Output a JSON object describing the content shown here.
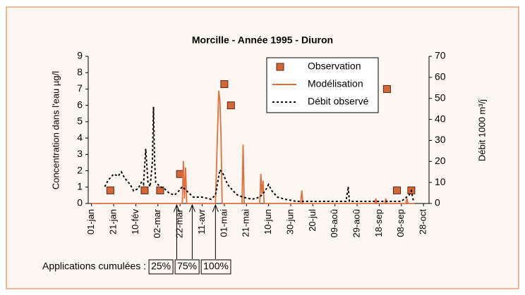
{
  "chart_data": {
    "type": "line",
    "title": "Morcille - Année 1995 - Diuron",
    "ylabel": "Concentration dans l'eau µg/l",
    "y2label": "Débit 1000 m³/j",
    "xlim": [
      -3,
      305
    ],
    "xticks": [
      {
        "value": 0,
        "label": "01-jan"
      },
      {
        "value": 20,
        "label": "21-jan"
      },
      {
        "value": 40,
        "label": "10-fév"
      },
      {
        "value": 60,
        "label": "02-mar"
      },
      {
        "value": 80,
        "label": "22-mar"
      },
      {
        "value": 100,
        "label": "11-avr"
      },
      {
        "value": 120,
        "label": "01-mai"
      },
      {
        "value": 140,
        "label": "21-mai"
      },
      {
        "value": 160,
        "label": "10-jun"
      },
      {
        "value": 180,
        "label": "30-jun"
      },
      {
        "value": 200,
        "label": "20-jul"
      },
      {
        "value": 220,
        "label": "09-aoû"
      },
      {
        "value": 240,
        "label": "29-aoû"
      },
      {
        "value": 260,
        "label": "18-sep"
      },
      {
        "value": 280,
        "label": "08-sep"
      },
      {
        "value": 300,
        "label": "28-oct"
      }
    ],
    "ylim": [
      0,
      9
    ],
    "yticks": [
      0,
      1,
      2,
      3,
      4,
      5,
      6,
      7,
      8,
      9
    ],
    "y2lim": [
      0,
      70
    ],
    "y2ticks": [
      0,
      10,
      20,
      30,
      40,
      50,
      60,
      70
    ],
    "legend": "top-right",
    "series": [
      {
        "name": "Observation",
        "type": "scatter",
        "color": "#d4673a",
        "x": [
          17,
          48,
          62,
          80,
          120,
          126,
          267,
          276,
          289
        ],
        "values": [
          0.8,
          0.8,
          0.8,
          1.8,
          7.3,
          6.0,
          7.0,
          0.8,
          0.8
        ]
      },
      {
        "name": "Modélisation",
        "type": "line",
        "color": "#e0703f",
        "x": [
          0,
          82,
          83,
          84,
          85,
          86,
          112,
          115,
          116,
          117,
          118,
          136,
          137,
          138,
          152,
          153,
          154,
          155,
          156,
          189,
          190,
          191,
          256,
          257,
          258,
          265,
          266,
          267,
          284,
          285,
          286,
          292
        ],
        "values": [
          0,
          0,
          2.6,
          0.3,
          2.2,
          0,
          0,
          6.9,
          6.3,
          4.2,
          0,
          0,
          3.6,
          0,
          0,
          1.8,
          0.6,
          1.4,
          0,
          0,
          0.8,
          0,
          0,
          0.3,
          0,
          0,
          0.3,
          0,
          0,
          0.3,
          0,
          0
        ]
      },
      {
        "name": "Débit observé",
        "type": "line",
        "color": "#000000",
        "dash": true,
        "axis": "y2",
        "x": [
          12,
          15,
          20,
          24,
          27,
          30,
          35,
          38,
          42,
          45,
          47,
          49,
          51,
          53,
          55,
          56,
          57,
          58,
          62,
          66,
          70,
          75,
          79,
          82,
          86,
          92,
          100,
          108,
          112,
          116,
          119,
          123,
          128,
          132,
          137,
          145,
          152,
          157,
          160,
          163,
          168,
          175,
          185,
          200,
          230,
          232,
          233,
          260,
          280,
          287,
          289,
          291
        ],
        "values": [
          8,
          11,
          14,
          13,
          15,
          12,
          9,
          6,
          7,
          10,
          9,
          26,
          10,
          8,
          20,
          46,
          20,
          10,
          8,
          7,
          5,
          4,
          6,
          8,
          6,
          3,
          3,
          2,
          4,
          16,
          14,
          9,
          6,
          4,
          3,
          2,
          3,
          6,
          9,
          6,
          3,
          2,
          1,
          1,
          1,
          8,
          1,
          1,
          1,
          4,
          6,
          1
        ]
      }
    ],
    "annotations": {
      "label": "Applications cumulées :",
      "items": [
        {
          "x": 77,
          "label": "25%"
        },
        {
          "x": 91,
          "label": "75%"
        },
        {
          "x": 112,
          "label": "100%"
        }
      ]
    }
  }
}
